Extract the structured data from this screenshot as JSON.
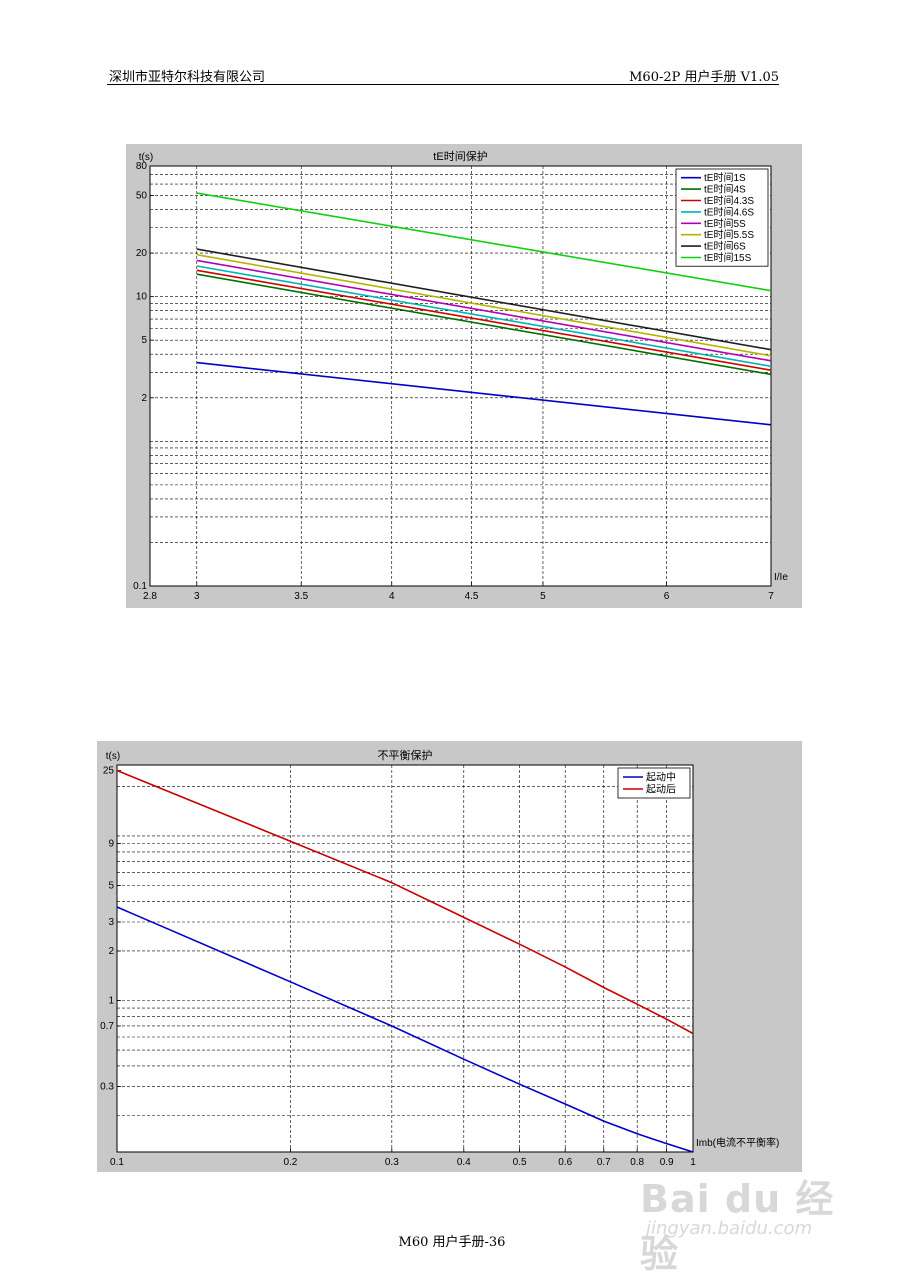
{
  "header": {
    "company": "深圳市亚特尔科技有限公司",
    "manual": "M60-2P 用户手册 V1.05"
  },
  "footer": {
    "page": "M60 用户手册-36"
  },
  "watermark": {
    "brand": "Bai du 经验",
    "url": "jingyan.baidu.com"
  },
  "chart_data": [
    {
      "type": "line",
      "title": "tE时间保护",
      "ylabel": "t(s)",
      "xlabel": "I/Ie",
      "xscale": "log",
      "yscale": "log",
      "xlim": [
        2.8,
        7
      ],
      "ylim": [
        0.1,
        80
      ],
      "xticks": [
        2.8,
        3,
        3.5,
        4,
        4.5,
        5,
        6,
        7
      ],
      "yticks": [
        0.1,
        2,
        5,
        10,
        20,
        50,
        80
      ],
      "grid": true,
      "legend_position": "top-right",
      "series": [
        {
          "name": "tE时间1S",
          "color": "#0000c8",
          "points": [
            [
              3,
              3.5
            ],
            [
              7,
              1.3
            ]
          ]
        },
        {
          "name": "tE时间4S",
          "color": "#007000",
          "points": [
            [
              3,
              14.3
            ],
            [
              7,
              2.9
            ]
          ]
        },
        {
          "name": "tE时间4.3S",
          "color": "#d00000",
          "points": [
            [
              3,
              15.2
            ],
            [
              7,
              3.1
            ]
          ]
        },
        {
          "name": "tE时间4.6S",
          "color": "#00b4b4",
          "points": [
            [
              3,
              16.3
            ],
            [
              7,
              3.3
            ]
          ]
        },
        {
          "name": "tE时间5S",
          "color": "#b400b4",
          "points": [
            [
              3,
              17.8
            ],
            [
              7,
              3.6
            ]
          ]
        },
        {
          "name": "tE时间5.5S",
          "color": "#b4b400",
          "points": [
            [
              3,
              19.5
            ],
            [
              7,
              3.9
            ]
          ]
        },
        {
          "name": "tE时间6S",
          "color": "#202020",
          "points": [
            [
              3,
              21.3
            ],
            [
              7,
              4.3
            ]
          ]
        },
        {
          "name": "tE时间15S",
          "color": "#10d010",
          "points": [
            [
              3,
              52
            ],
            [
              7,
              11
            ]
          ]
        }
      ]
    },
    {
      "type": "line",
      "title": "不平衡保护",
      "ylabel": "t(s)",
      "xlabel": "Imb(电流不平衡率)",
      "xscale": "log",
      "yscale": "log",
      "xlim": [
        0.1,
        1
      ],
      "ylim": [
        0.12,
        27
      ],
      "xticks": [
        0.1,
        0.2,
        0.3,
        0.4,
        0.5,
        0.6,
        0.7,
        0.8,
        0.9,
        1
      ],
      "yticks": [
        0.3,
        0.7,
        1,
        2,
        3,
        5,
        9,
        25
      ],
      "grid": true,
      "legend_position": "top-right",
      "series": [
        {
          "name": "起动中",
          "color": "#0000c8",
          "points": [
            [
              0.1,
              3.7
            ],
            [
              0.2,
              1.3
            ],
            [
              0.3,
              0.7
            ],
            [
              0.4,
              0.44
            ],
            [
              0.5,
              0.31
            ],
            [
              0.6,
              0.235
            ],
            [
              0.7,
              0.185
            ],
            [
              0.8,
              0.155
            ],
            [
              0.9,
              0.135
            ],
            [
              1,
              0.12
            ]
          ]
        },
        {
          "name": "起动后",
          "color": "#c80000",
          "points": [
            [
              0.1,
              25
            ],
            [
              0.2,
              9.3
            ],
            [
              0.3,
              5.2
            ],
            [
              0.4,
              3.2
            ],
            [
              0.5,
              2.2
            ],
            [
              0.6,
              1.6
            ],
            [
              0.7,
              1.2
            ],
            [
              0.8,
              0.95
            ],
            [
              0.9,
              0.77
            ],
            [
              1,
              0.63
            ]
          ]
        }
      ]
    }
  ]
}
